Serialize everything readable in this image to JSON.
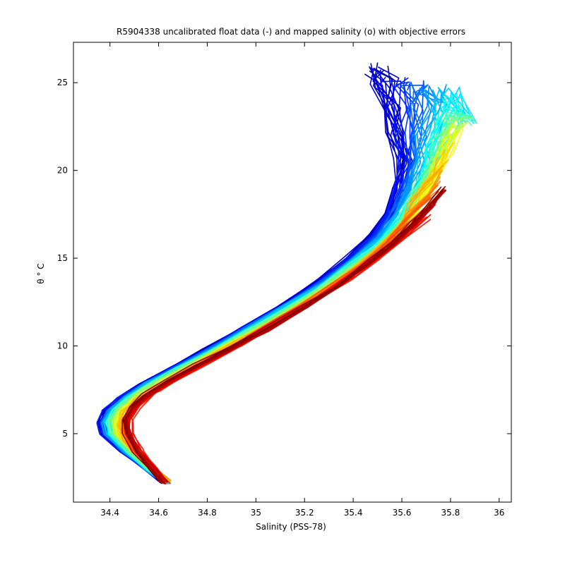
{
  "chart_data": {
    "type": "line",
    "title": "R5904338 uncalibrated float data (-) and mapped salinity (o) with objective errors",
    "xlabel": "Salinity (PSS-78)",
    "ylabel": "θ ° C",
    "xlim": [
      34.25,
      36.05
    ],
    "ylim": [
      1.1,
      27.3
    ],
    "xticks": [
      34.4,
      34.6,
      34.8,
      35,
      35.2,
      35.4,
      35.6,
      35.8,
      36
    ],
    "xtick_labels": [
      "34.4",
      "34.6",
      "34.8",
      "35",
      "35.2",
      "35.4",
      "35.6",
      "35.8",
      "36"
    ],
    "yticks": [
      5,
      10,
      15,
      20,
      25
    ],
    "ytick_labels": [
      "5",
      "10",
      "15",
      "20",
      "25"
    ],
    "grid": false,
    "colormap": [
      "#00008f",
      "#0000ff",
      "#0080ff",
      "#00ffff",
      "#80ff80",
      "#ffff00",
      "#ff8000",
      "#ff0000",
      "#800000"
    ],
    "profile_count": 120,
    "series": [
      {
        "color_position": 0.1,
        "points": [
          [
            34.62,
            2.2
          ],
          [
            34.55,
            3.0
          ],
          [
            34.45,
            4.0
          ],
          [
            34.37,
            5.0
          ],
          [
            34.36,
            5.6
          ],
          [
            34.38,
            6.3
          ],
          [
            34.44,
            7.0
          ],
          [
            34.53,
            7.8
          ],
          [
            34.65,
            8.7
          ],
          [
            34.8,
            9.8
          ],
          [
            34.95,
            11.0
          ],
          [
            35.1,
            12.2
          ],
          [
            35.25,
            13.6
          ],
          [
            35.38,
            15.0
          ],
          [
            35.48,
            16.3
          ],
          [
            35.54,
            17.5
          ],
          [
            35.58,
            19.0
          ],
          [
            35.6,
            20.5
          ],
          [
            35.58,
            22.0
          ],
          [
            35.55,
            23.5
          ],
          [
            35.52,
            25.0
          ],
          [
            35.5,
            25.8
          ]
        ]
      },
      {
        "color_position": 0.35,
        "points": [
          [
            34.63,
            2.2
          ],
          [
            34.56,
            3.0
          ],
          [
            34.47,
            4.0
          ],
          [
            34.4,
            5.0
          ],
          [
            34.39,
            5.7
          ],
          [
            34.42,
            6.4
          ],
          [
            34.48,
            7.1
          ],
          [
            34.57,
            7.9
          ],
          [
            34.69,
            8.8
          ],
          [
            34.84,
            9.9
          ],
          [
            34.99,
            11.1
          ],
          [
            35.14,
            12.3
          ],
          [
            35.29,
            13.6
          ],
          [
            35.42,
            15.0
          ],
          [
            35.53,
            16.2
          ],
          [
            35.6,
            17.5
          ],
          [
            35.66,
            19.0
          ],
          [
            35.7,
            20.5
          ],
          [
            35.74,
            22.0
          ],
          [
            35.78,
            23.5
          ],
          [
            35.82,
            24.5
          ],
          [
            35.88,
            22.8
          ]
        ]
      },
      {
        "color_position": 0.6,
        "points": [
          [
            34.64,
            2.3
          ],
          [
            34.58,
            3.0
          ],
          [
            34.5,
            4.0
          ],
          [
            34.43,
            5.0
          ],
          [
            34.42,
            5.7
          ],
          [
            34.45,
            6.4
          ],
          [
            34.51,
            7.1
          ],
          [
            34.6,
            7.9
          ],
          [
            34.72,
            8.8
          ],
          [
            34.87,
            9.9
          ],
          [
            35.02,
            11.0
          ],
          [
            35.17,
            12.2
          ],
          [
            35.32,
            13.5
          ],
          [
            35.46,
            14.9
          ],
          [
            35.57,
            16.1
          ],
          [
            35.65,
            17.4
          ],
          [
            35.71,
            18.8
          ],
          [
            35.75,
            20.2
          ],
          [
            35.79,
            21.5
          ],
          [
            35.83,
            22.8
          ]
        ]
      },
      {
        "color_position": 0.85,
        "points": [
          [
            34.63,
            2.2
          ],
          [
            34.58,
            3.0
          ],
          [
            34.52,
            4.0
          ],
          [
            34.48,
            5.0
          ],
          [
            34.48,
            5.8
          ],
          [
            34.51,
            6.5
          ],
          [
            34.57,
            7.2
          ],
          [
            34.66,
            8.0
          ],
          [
            34.78,
            8.9
          ],
          [
            34.92,
            10.0
          ],
          [
            35.07,
            11.2
          ],
          [
            35.22,
            12.4
          ],
          [
            35.37,
            13.7
          ],
          [
            35.5,
            15.0
          ],
          [
            35.61,
            16.2
          ],
          [
            35.7,
            17.2
          ]
        ]
      },
      {
        "color_position": 0.95,
        "points": [
          [
            34.62,
            2.2
          ],
          [
            34.57,
            3.0
          ],
          [
            34.51,
            4.0
          ],
          [
            34.47,
            5.0
          ],
          [
            34.46,
            5.8
          ],
          [
            34.49,
            6.5
          ],
          [
            34.55,
            7.2
          ],
          [
            34.64,
            8.0
          ],
          [
            34.76,
            8.9
          ],
          [
            34.9,
            9.9
          ],
          [
            35.05,
            11.0
          ],
          [
            35.2,
            12.2
          ],
          [
            35.35,
            13.5
          ],
          [
            35.47,
            14.8
          ],
          [
            35.57,
            15.9
          ],
          [
            35.65,
            17.0
          ],
          [
            35.72,
            18.0
          ],
          [
            35.77,
            19.0
          ]
        ]
      }
    ]
  }
}
